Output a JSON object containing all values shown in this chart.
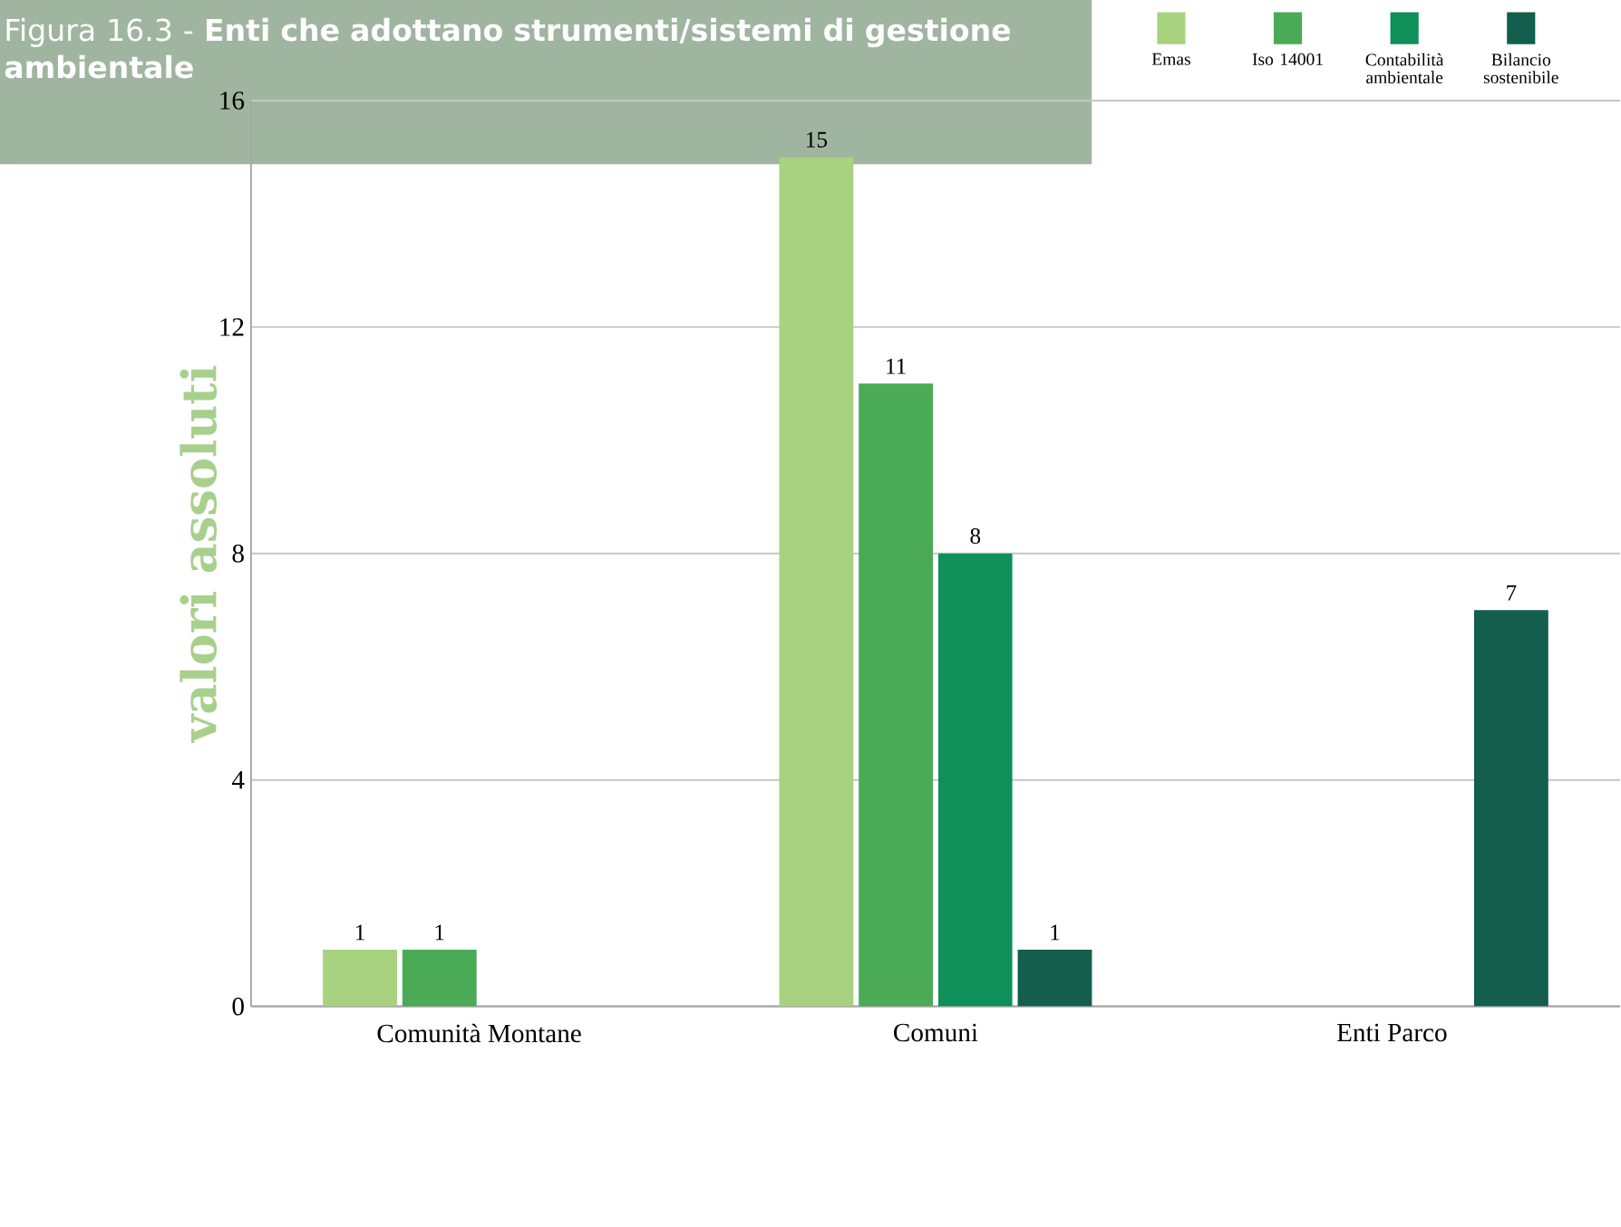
{
  "chart_data": {
    "type": "bar",
    "title": "Figura 16.3 - **Enti che adottano strumenti/sistemi di gestione ambientale**",
    "ylabel": "valori assoluti",
    "categories": [
      "Comunità Montane",
      "Comuni",
      "Enti Parco"
    ],
    "series": [
      {
        "name": "Emas",
        "color": "#a8d27f",
        "values": [
          1,
          15,
          null
        ]
      },
      {
        "name": "Iso 14001",
        "color": "#4aaa55",
        "values": [
          1,
          11,
          null
        ]
      },
      {
        "name": "Contabilità ambientale",
        "color": "#0f8f5a",
        "values": [
          null,
          8,
          null
        ]
      },
      {
        "name": "Bilancio sostenibile",
        "color": "#135e4c",
        "values": [
          null,
          1,
          7
        ]
      }
    ],
    "ylim": [
      0,
      16
    ],
    "yticks": [
      0,
      4,
      8,
      12,
      16
    ],
    "grid": "y",
    "legend": "top right",
    "data_labels": true
  }
}
